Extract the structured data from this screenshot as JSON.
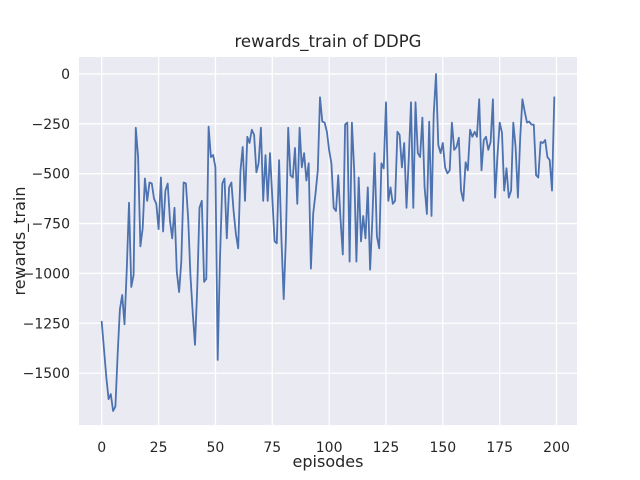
{
  "colors": {
    "figure_background": "#FFFFFF",
    "axes_background": "#EAEAF2",
    "grid": "#FFFFFF",
    "line": "#4C72B0",
    "text": "#262626"
  },
  "chart_data": {
    "type": "line",
    "title": "rewards_train of DDPG",
    "xlabel": "episodes",
    "ylabel": "rewards_train",
    "grid": true,
    "legend": false,
    "xlim": [
      -10,
      209
    ],
    "ylim": [
      -1760,
      85
    ],
    "x_ticks": [
      0,
      25,
      50,
      75,
      100,
      125,
      150,
      175,
      200
    ],
    "x_tick_labels": [
      "0",
      "25",
      "50",
      "75",
      "100",
      "125",
      "150",
      "175",
      "200"
    ],
    "y_ticks": [
      0,
      -250,
      -500,
      -750,
      -1000,
      -1250,
      -1500
    ],
    "y_tick_labels": [
      "0",
      "−250",
      "−500",
      "−750",
      "−1000",
      "−1250",
      "−1500"
    ],
    "series": [
      {
        "name": "rewards_train",
        "color": "#4C72B0",
        "x_is_index": true,
        "values": [
          -1242,
          -1380,
          -1520,
          -1630,
          -1605,
          -1690,
          -1668,
          -1400,
          -1180,
          -1108,
          -1255,
          -976,
          -646,
          -1068,
          -1007,
          -270,
          -417,
          -864,
          -773,
          -524,
          -636,
          -544,
          -549,
          -625,
          -651,
          -778,
          -519,
          -790,
          -585,
          -549,
          -737,
          -824,
          -671,
          -992,
          -1093,
          -941,
          -544,
          -549,
          -727,
          -1007,
          -1195,
          -1358,
          -1078,
          -671,
          -636,
          -1042,
          -1027,
          -264,
          -417,
          -407,
          -468,
          -1434,
          -925,
          -549,
          -524,
          -824,
          -569,
          -544,
          -687,
          -803,
          -874,
          -483,
          -366,
          -636,
          -315,
          -346,
          -280,
          -305,
          -493,
          -448,
          -270,
          -636,
          -407,
          -636,
          -397,
          -620,
          -839,
          -849,
          -432,
          -824,
          -1129,
          -824,
          -270,
          -508,
          -519,
          -371,
          -651,
          -270,
          -468,
          -397,
          -534,
          -448,
          -976,
          -700,
          -600,
          -483,
          -117,
          -239,
          -244,
          -290,
          -381,
          -448,
          -671,
          -687,
          -508,
          -727,
          -905,
          -254,
          -244,
          -941,
          -244,
          -483,
          -941,
          -519,
          -839,
          -712,
          -824,
          -569,
          -981,
          -737,
          -397,
          -814,
          -874,
          -448,
          -473,
          -142,
          -636,
          -569,
          -651,
          -636,
          -290,
          -305,
          -468,
          -346,
          -671,
          -432,
          -142,
          -671,
          -142,
          -397,
          -417,
          -219,
          -569,
          -702,
          -239,
          -712,
          -203,
          0,
          -356,
          -397,
          -346,
          -468,
          -498,
          -483,
          -244,
          -381,
          -366,
          -320,
          -585,
          -636,
          -443,
          -483,
          -280,
          -315,
          -290,
          -315,
          -127,
          -483,
          -331,
          -315,
          -381,
          -341,
          -127,
          -620,
          -417,
          -244,
          -295,
          -585,
          -473,
          -620,
          -585,
          -244,
          -366,
          -620,
          -320,
          -127,
          -188,
          -244,
          -239,
          -254,
          -254,
          -508,
          -519,
          -341,
          -346,
          -331,
          -417,
          -432,
          -585,
          -117
        ]
      }
    ]
  }
}
